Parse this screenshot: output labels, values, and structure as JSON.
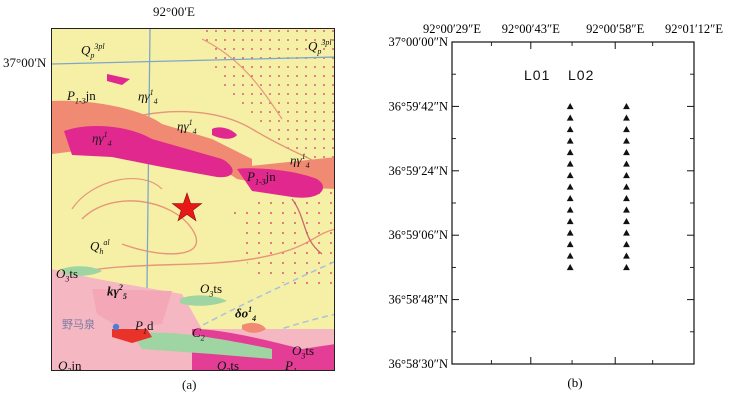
{
  "panel_a": {
    "caption": "(a)",
    "top_longitude": "92°00′E",
    "left_latitude": "37°00′N",
    "units": {
      "qp_left": {
        "base": "Q",
        "sub": "p",
        "sup": "3pl"
      },
      "qp_right": {
        "base": "Q",
        "sub": "p",
        "sup": "3pl"
      },
      "p1jn_upper": {
        "base": "P",
        "sub": "1-3",
        "tail": "jn"
      },
      "p1jn_lower": {
        "base": "P",
        "sub": "1-3",
        "tail": "jn"
      },
      "eta_upper": {
        "base": "ηγ",
        "sub": "4",
        "sup": "1"
      },
      "eta_mid": {
        "base": "ηγ",
        "sub": "4",
        "sup": "1"
      },
      "eta_left": {
        "base": "ηγ",
        "sub": "4",
        "sup": "1"
      },
      "eta_right": {
        "base": "ηγ",
        "sub": "4",
        "sup": "1"
      },
      "qh_al": {
        "base": "Q",
        "sub": "h",
        "sup": "al"
      },
      "o3ts_left": {
        "base": "O",
        "sub": "3",
        "tail": "ts"
      },
      "o3ts_mid": {
        "base": "O",
        "sub": "3",
        "tail": "ts"
      },
      "o3ts_bottom_right": {
        "base": "O",
        "sub": "3",
        "tail": "ts"
      },
      "o3ts_bottom": {
        "base": "O",
        "sub": "3",
        "tail": "ts"
      },
      "kgamma": {
        "base": "kγ",
        "sub": "5",
        "sup": "2"
      },
      "delta_o": {
        "base": "δo",
        "sub": "4",
        "sup": "1"
      },
      "p1d": {
        "base": "P",
        "sub": "1",
        "tail": "d"
      },
      "c2": {
        "base": "C",
        "sub": "2",
        "tail": ""
      },
      "p1_bottom": {
        "base": "P",
        "sub": "1",
        "tail": ""
      },
      "q3jn_bottom": {
        "base": "Q",
        "sub": "3",
        "tail": "jn"
      }
    },
    "place_name": "野马泉",
    "colors": {
      "background": "#f5f0a6",
      "magenta": "#e0288e",
      "salmon": "#f08a72",
      "pink": "#f5b7c2",
      "green": "#9fd4a3",
      "red_star": "#e81818",
      "grid": "#7fa6c9"
    }
  },
  "chart_data": {
    "type": "scatter",
    "caption": "(b)",
    "x_axis": {
      "position": "top",
      "ticks": [
        "92°00′29″E",
        "92°00′43″E",
        "92°00′58″E",
        "92°01′12″E"
      ],
      "range_seconds_past_92E": [
        29,
        72
      ]
    },
    "y_axis": {
      "position": "left",
      "ticks": [
        "37°00′00″N",
        "36°59′42″N",
        "36°59′24″N",
        "36°59′06″N",
        "36°58′48″N",
        "36°58′30″N"
      ],
      "range_seconds_past_36_58N": [
        30,
        120
      ]
    },
    "grid": false,
    "marker": "triangle",
    "series": [
      {
        "name": "L01",
        "x": "92°00′50″E",
        "y_from": "36°59′42″N",
        "y_to": "36°58′57″N",
        "count": 15
      },
      {
        "name": "L02",
        "x": "92°01′00″E",
        "y_from": "36°59′42″N",
        "y_to": "36°58′57″N",
        "count": 15
      }
    ]
  }
}
